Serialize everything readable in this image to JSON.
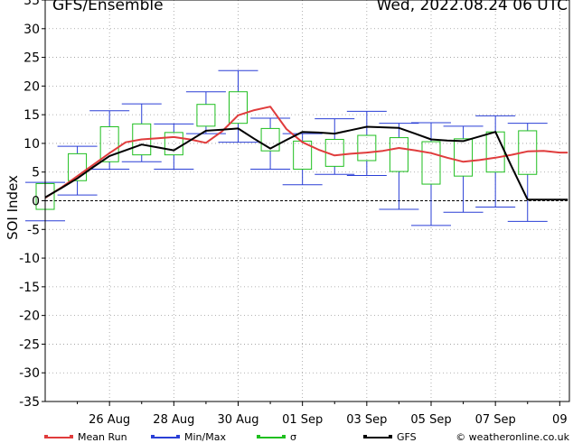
{
  "header": {
    "title": "GFS/Ensemble",
    "run_label": "Wed, 2022.08.24   06 UTC"
  },
  "legend": {
    "items": [
      {
        "label": "Mean Run",
        "color": "#e03c3c"
      },
      {
        "label": "Min/Max",
        "color": "#2a3fd6"
      },
      {
        "label": "σ",
        "color": "#1fbf1f"
      },
      {
        "label": "GFS",
        "color": "#000000"
      }
    ],
    "credit": "© weatheronline.co.uk"
  },
  "chart_data": {
    "type": "line",
    "ylabel": "SOI Index",
    "xlabel": "",
    "ylim": [
      -35,
      35
    ],
    "yticks": [
      35,
      30,
      25,
      20,
      15,
      10,
      5,
      0,
      -5,
      -10,
      -15,
      -20,
      -25,
      -30,
      -35
    ],
    "x_tick_labels": [
      "26 Aug",
      "28 Aug",
      "30 Aug",
      "01 Sep",
      "03 Sep",
      "05 Sep",
      "07 Sep",
      "09"
    ],
    "x_tick_days": [
      2,
      4,
      6,
      8,
      10,
      12,
      14,
      16
    ],
    "x_range_days": [
      0,
      16.3
    ],
    "grid": true,
    "colors": {
      "mean": "#e03c3c",
      "minmax": "#2a3fd6",
      "sigma": "#1fbf1f",
      "gfs": "#000000"
    },
    "x_days": [
      0,
      0.5,
      1,
      1.5,
      2,
      2.5,
      3,
      3.5,
      4,
      4.5,
      5,
      5.5,
      6,
      6.5,
      7,
      7.5,
      8,
      8.5,
      9,
      9.5,
      10,
      10.5,
      11,
      11.5,
      12,
      12.5,
      13,
      13.5,
      14,
      14.5,
      15,
      15.5,
      16,
      16.25
    ],
    "series": [
      {
        "name": "Mean Run",
        "values": [
          0.5,
          2.3,
          4.3,
          6.3,
          8.3,
          10.2,
          10.7,
          10.9,
          11.1,
          10.7,
          10.1,
          12.1,
          14.9,
          15.8,
          16.4,
          12.5,
          10.2,
          8.9,
          7.9,
          8.2,
          8.4,
          8.7,
          9.2,
          8.8,
          8.3,
          7.5,
          6.8,
          7.1,
          7.5,
          8.0,
          8.6,
          8.7,
          8.4,
          8.4
        ]
      },
      {
        "name": "GFS",
        "values": [
          0.6,
          2.2,
          3.9,
          5.9,
          7.8,
          8.8,
          9.8,
          9.3,
          8.8,
          10.5,
          12.2,
          12.4,
          12.6,
          10.8,
          9.1,
          10.6,
          12.0,
          11.9,
          11.7,
          12.3,
          12.9,
          12.8,
          12.7,
          11.7,
          10.7,
          10.5,
          10.4,
          11.2,
          12.0,
          6.0,
          0.2,
          0.2,
          0.2,
          0.2
        ]
      }
    ],
    "boxes": [
      {
        "x": 0,
        "min": -3.5,
        "max": 3.2,
        "sigma_lo": -1.5,
        "sigma_hi": 3.0
      },
      {
        "x": 1,
        "min": 1.0,
        "max": 9.5,
        "sigma_lo": 3.5,
        "sigma_hi": 8.2
      },
      {
        "x": 2,
        "min": 5.5,
        "max": 15.7,
        "sigma_lo": 6.8,
        "sigma_hi": 12.9
      },
      {
        "x": 3,
        "min": 6.8,
        "max": 16.9,
        "sigma_lo": 8.0,
        "sigma_hi": 13.4
      },
      {
        "x": 4,
        "min": 5.5,
        "max": 13.4,
        "sigma_lo": 8.0,
        "sigma_hi": 11.9
      },
      {
        "x": 5,
        "min": 11.7,
        "max": 19.0,
        "sigma_lo": 13.0,
        "sigma_hi": 16.8
      },
      {
        "x": 6,
        "min": 10.2,
        "max": 22.7,
        "sigma_lo": 13.5,
        "sigma_hi": 19.0
      },
      {
        "x": 7,
        "min": 5.5,
        "max": 14.4,
        "sigma_lo": 8.7,
        "sigma_hi": 12.6
      },
      {
        "x": 8,
        "min": 2.8,
        "max": 11.7,
        "sigma_lo": 5.5,
        "sigma_hi": 10.4
      },
      {
        "x": 9,
        "min": 4.6,
        "max": 14.3,
        "sigma_lo": 6.0,
        "sigma_hi": 10.7
      },
      {
        "x": 10,
        "min": 4.4,
        "max": 15.6,
        "sigma_lo": 7.0,
        "sigma_hi": 11.4
      },
      {
        "x": 11,
        "min": -1.5,
        "max": 13.5,
        "sigma_lo": 5.1,
        "sigma_hi": 11.0
      },
      {
        "x": 12,
        "min": -4.3,
        "max": 13.6,
        "sigma_lo": 2.9,
        "sigma_hi": 10.3
      },
      {
        "x": 13,
        "min": -2.0,
        "max": 13.0,
        "sigma_lo": 4.3,
        "sigma_hi": 10.8
      },
      {
        "x": 14,
        "min": -1.1,
        "max": 14.8,
        "sigma_lo": 5.0,
        "sigma_hi": 12.0
      },
      {
        "x": 15,
        "min": -3.6,
        "max": 13.5,
        "sigma_lo": 4.6,
        "sigma_hi": 12.2
      }
    ]
  }
}
